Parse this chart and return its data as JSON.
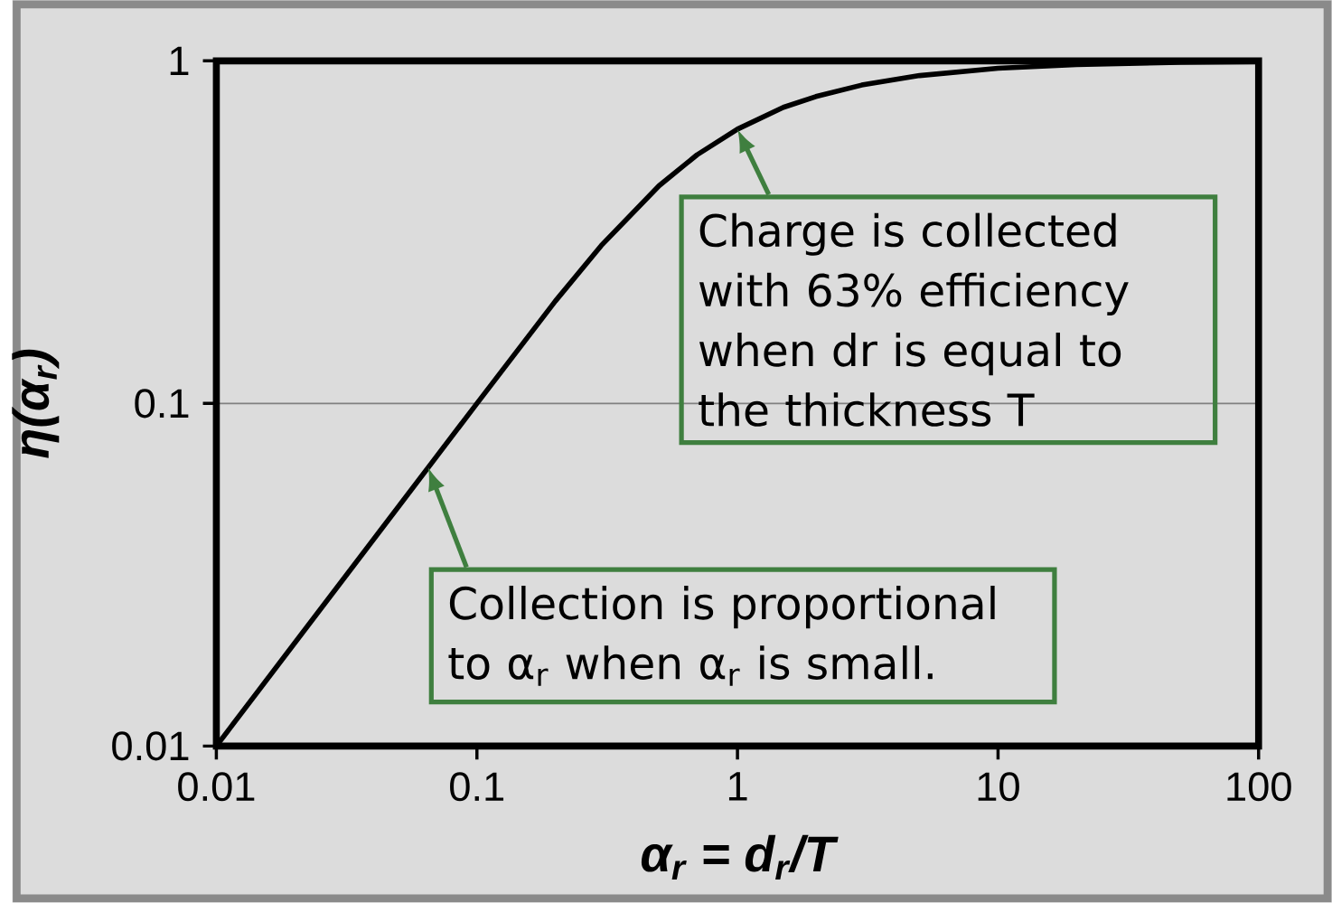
{
  "chart_data": {
    "type": "line",
    "xlabel": "**α$_{r}$ = d$_{r}$/T**",
    "ylabel": "**η(α$_{r}$)**",
    "log": "xy",
    "grid": "y",
    "xlim": [
      0.01,
      100
    ],
    "ylim": [
      0.01,
      1
    ],
    "xticks": [
      0.01,
      0.1,
      1,
      10,
      100
    ],
    "yticks": [
      0.01,
      0.1,
      1
    ],
    "series": [
      {
        "color": "#000000",
        "x": [
          0.01,
          0.02,
          0.05,
          0.1,
          0.2,
          0.3,
          0.5,
          0.7,
          1,
          1.5,
          2,
          3,
          5,
          10,
          20,
          50,
          100
        ],
        "values": [
          0.01,
          0.02,
          0.05,
          0.1,
          0.199,
          0.289,
          0.432,
          0.532,
          0.632,
          0.732,
          0.787,
          0.85,
          0.906,
          0.952,
          0.975,
          0.99,
          0.995
        ]
      }
    ],
    "annotations": [
      {
        "text": "Charge is collected with 63% efficiency when dr is equal to the thickness T",
        "x": 1,
        "y": 0.632
      },
      {
        "text": "Collection is proportional to α$_{r}$ when α$_{r}$ is small.",
        "x": 0.065,
        "y": 0.065
      }
    ]
  }
}
